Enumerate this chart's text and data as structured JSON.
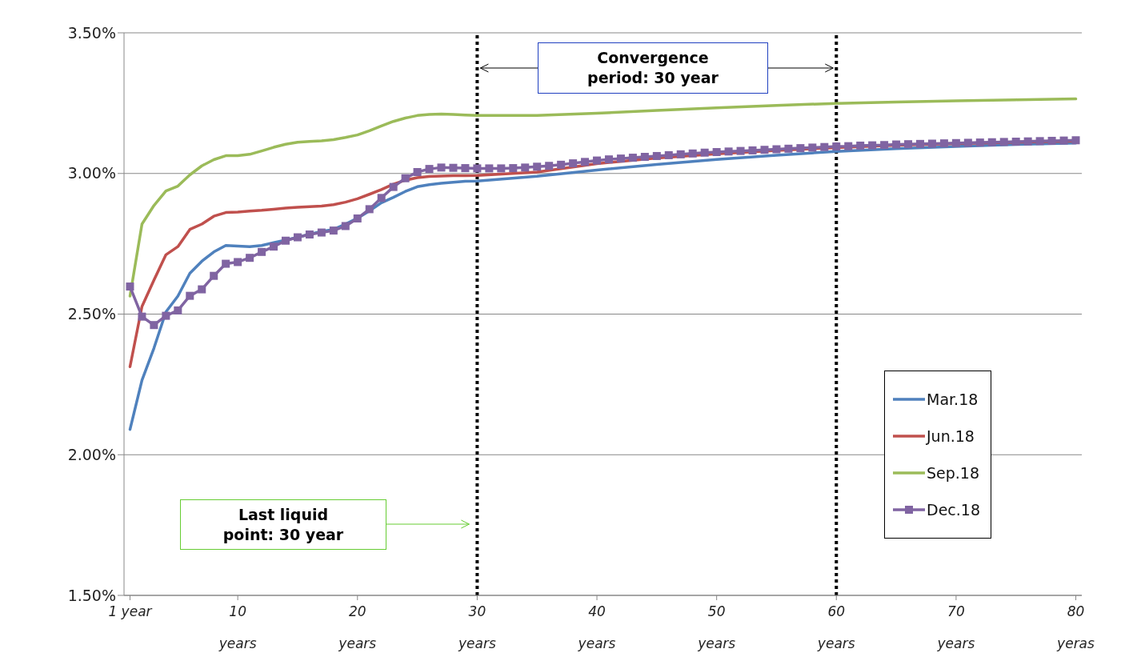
{
  "chart_data": {
    "type": "line",
    "xlim": [
      0.5,
      80.5
    ],
    "xticks": [
      {
        "value": 1,
        "label": "1 year"
      },
      {
        "value": 10,
        "label": "10\nyears"
      },
      {
        "value": 20,
        "label": "20\nyears"
      },
      {
        "value": 30,
        "label": "30\nyears"
      },
      {
        "value": 40,
        "label": "40\nyears"
      },
      {
        "value": 50,
        "label": "50\nyears"
      },
      {
        "value": 60,
        "label": "60\nyears"
      },
      {
        "value": 70,
        "label": "70\nyears"
      },
      {
        "value": 80,
        "label": "80\nyeras"
      }
    ],
    "ylim": [
      1.5,
      3.5
    ],
    "yticks": [
      {
        "value": 1.5,
        "label": "1.50%"
      },
      {
        "value": 2.0,
        "label": "2.00%"
      },
      {
        "value": 2.5,
        "label": "2.50%"
      },
      {
        "value": 3.0,
        "label": "3.00%"
      },
      {
        "value": 3.5,
        "label": "3.50%"
      }
    ],
    "grid": "y",
    "legend": "right",
    "line_style": "solid",
    "series": [
      {
        "name": "Mar.18",
        "color": "#4f81bd",
        "marker": "none",
        "x": [
          1,
          2,
          3,
          4,
          5,
          6,
          7,
          8,
          9,
          10,
          11,
          12,
          13,
          14,
          15,
          16,
          17,
          18,
          19,
          20,
          21,
          22,
          23,
          24,
          25,
          26,
          27,
          28,
          29,
          30,
          35,
          40,
          45,
          50,
          55,
          60,
          65,
          70,
          75,
          80
        ],
        "values": [
          2.09,
          2.265,
          2.379,
          2.508,
          2.564,
          2.645,
          2.688,
          2.721,
          2.744,
          2.742,
          2.74,
          2.744,
          2.754,
          2.763,
          2.773,
          2.784,
          2.794,
          2.801,
          2.82,
          2.841,
          2.867,
          2.896,
          2.915,
          2.936,
          2.953,
          2.96,
          2.965,
          2.969,
          2.972,
          2.973,
          2.99,
          3.012,
          3.032,
          3.05,
          3.065,
          3.078,
          3.088,
          3.096,
          3.103,
          3.108
        ]
      },
      {
        "name": "Jun.18",
        "color": "#c0504d",
        "marker": "none",
        "x": [
          1,
          2,
          3,
          4,
          5,
          6,
          7,
          8,
          9,
          10,
          11,
          12,
          13,
          14,
          15,
          16,
          17,
          18,
          19,
          20,
          21,
          22,
          23,
          24,
          25,
          26,
          27,
          28,
          29,
          30,
          35,
          40,
          45,
          50,
          55,
          60,
          65,
          70,
          75,
          80
        ],
        "values": [
          2.313,
          2.527,
          2.621,
          2.711,
          2.74,
          2.801,
          2.82,
          2.848,
          2.861,
          2.863,
          2.866,
          2.869,
          2.873,
          2.877,
          2.88,
          2.882,
          2.884,
          2.889,
          2.898,
          2.91,
          2.926,
          2.943,
          2.962,
          2.976,
          2.985,
          2.989,
          2.991,
          2.992,
          2.992,
          2.993,
          3.005,
          3.035,
          3.055,
          3.07,
          3.082,
          3.092,
          3.1,
          3.106,
          3.111,
          3.115
        ]
      },
      {
        "name": "Sep.18",
        "color": "#9bbb59",
        "marker": "none",
        "x": [
          1,
          2,
          3,
          4,
          5,
          6,
          7,
          8,
          9,
          10,
          11,
          12,
          13,
          14,
          15,
          16,
          17,
          18,
          19,
          20,
          21,
          22,
          23,
          24,
          25,
          26,
          27,
          28,
          29,
          30,
          35,
          40,
          45,
          50,
          55,
          60,
          65,
          70,
          75,
          80
        ],
        "values": [
          2.564,
          2.82,
          2.886,
          2.938,
          2.955,
          2.995,
          3.027,
          3.049,
          3.063,
          3.063,
          3.068,
          3.08,
          3.093,
          3.104,
          3.111,
          3.114,
          3.116,
          3.12,
          3.128,
          3.137,
          3.152,
          3.169,
          3.185,
          3.197,
          3.206,
          3.21,
          3.211,
          3.21,
          3.208,
          3.206,
          3.206,
          3.214,
          3.224,
          3.233,
          3.242,
          3.249,
          3.254,
          3.258,
          3.262,
          3.265
        ]
      },
      {
        "name": "Dec.18",
        "color": "#8064a2",
        "marker": "square",
        "x": [
          1,
          2,
          3,
          4,
          5,
          6,
          7,
          8,
          9,
          10,
          11,
          12,
          13,
          14,
          15,
          16,
          17,
          18,
          19,
          20,
          21,
          22,
          23,
          24,
          25,
          26,
          27,
          28,
          29,
          30,
          31,
          32,
          33,
          34,
          35,
          36,
          37,
          38,
          39,
          40,
          41,
          42,
          43,
          44,
          45,
          46,
          47,
          48,
          49,
          50,
          51,
          52,
          53,
          54,
          55,
          56,
          57,
          58,
          59,
          60,
          61,
          62,
          63,
          64,
          65,
          66,
          67,
          68,
          69,
          70,
          71,
          72,
          73,
          74,
          75,
          76,
          77,
          78,
          79,
          80
        ],
        "values": [
          2.598,
          2.491,
          2.461,
          2.494,
          2.513,
          2.565,
          2.588,
          2.636,
          2.679,
          2.685,
          2.7,
          2.721,
          2.74,
          2.761,
          2.773,
          2.783,
          2.79,
          2.797,
          2.813,
          2.84,
          2.873,
          2.913,
          2.952,
          2.983,
          3.005,
          3.016,
          3.021,
          3.02,
          3.019,
          3.018,
          3.018,
          3.018,
          3.019,
          3.021,
          3.024,
          3.027,
          3.031,
          3.036,
          3.041,
          3.046,
          3.05,
          3.053,
          3.056,
          3.059,
          3.062,
          3.065,
          3.068,
          3.071,
          3.074,
          3.076,
          3.078,
          3.08,
          3.082,
          3.084,
          3.086,
          3.088,
          3.09,
          3.092,
          3.094,
          3.096,
          3.097,
          3.099,
          3.1,
          3.101,
          3.103,
          3.104,
          3.105,
          3.106,
          3.107,
          3.108,
          3.109,
          3.11,
          3.111,
          3.112,
          3.113,
          3.114,
          3.115,
          3.116,
          3.117,
          3.118
        ]
      }
    ],
    "ref_lines": [
      {
        "axis": "x",
        "value": 30,
        "color": "#000000",
        "line_style": "dotted"
      },
      {
        "axis": "x",
        "value": 60,
        "color": "#000000",
        "line_style": "dotted"
      }
    ],
    "annotations": [
      "Convergence period: 30 year",
      "Last liquid point: 30 year"
    ]
  }
}
